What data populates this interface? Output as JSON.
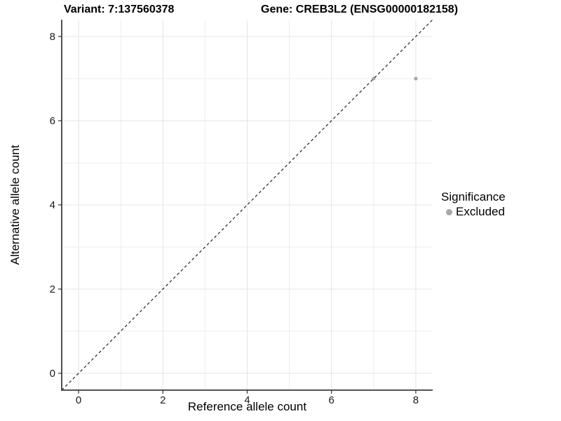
{
  "titles": {
    "variant": "Variant: 7:137560378",
    "gene": "Gene: CREB3L2 (ENSG00000182158)"
  },
  "chart_data": {
    "type": "scatter",
    "title": "Variant: 7:137560378 | Gene: CREB3L2 (ENSG00000182158)",
    "xlabel": "Reference allele count",
    "ylabel": "Alternative allele count",
    "xlim": [
      -0.4,
      8.4
    ],
    "ylim": [
      -0.4,
      8.4
    ],
    "x_ticks": [
      0,
      2,
      4,
      6,
      8
    ],
    "y_ticks": [
      0,
      2,
      4,
      6,
      8
    ],
    "minor_gridlines": [
      1,
      3,
      5,
      7
    ],
    "grid": true,
    "legend_title": "Significance",
    "legend_position": "right",
    "series": [
      {
        "name": "Excluded",
        "color": "#a8a8a8",
        "points": [
          {
            "x": 7,
            "y": 7
          },
          {
            "x": 8,
            "y": 7
          }
        ]
      }
    ],
    "reference_line": {
      "type": "identity",
      "equation": "y = x",
      "style": "dashed",
      "color": "#111111"
    }
  },
  "colors": {
    "background": "#ffffff",
    "grid_major": "#e6e6e6",
    "grid_minor": "#ededed",
    "axis_line": "#3c3c3c",
    "tick_mark": "#333333",
    "tick_label": "#1a1a1a",
    "point": "#a8a8a8"
  }
}
